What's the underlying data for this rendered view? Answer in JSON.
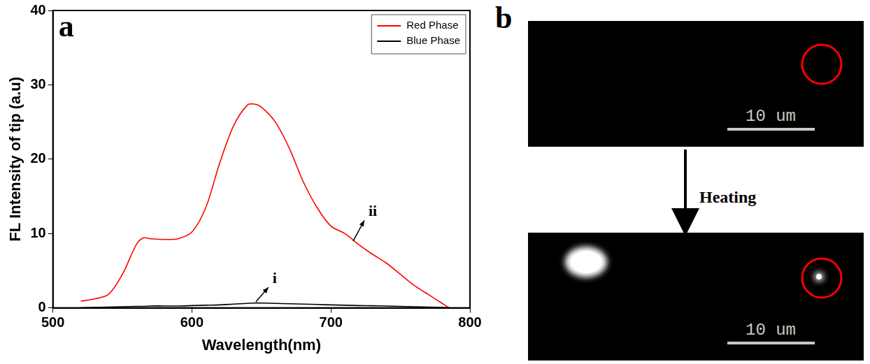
{
  "chart_data": {
    "type": "line",
    "panel_label": "a",
    "x_label": "Wavelength(nm)",
    "y_label": "FL Intensity of tip (a.u)",
    "x": [
      520,
      530,
      540,
      550,
      560,
      565,
      570,
      580,
      590,
      600,
      610,
      620,
      630,
      640,
      645,
      650,
      660,
      670,
      680,
      690,
      700,
      710,
      720,
      730,
      740,
      750,
      760,
      770,
      780,
      785
    ],
    "series": [
      {
        "name": "Red Phase",
        "color": "#ff0000",
        "values": [
          0.9,
          1.2,
          1.8,
          4.5,
          8.5,
          9.4,
          9.3,
          9.2,
          9.3,
          10.2,
          13.5,
          19.5,
          24.5,
          27.3,
          27.4,
          27.0,
          25.0,
          21.5,
          17.0,
          13.5,
          11.0,
          10.0,
          8.5,
          7.2,
          6.0,
          4.5,
          3.0,
          1.8,
          0.6,
          0.0
        ]
      },
      {
        "name": "Blue Phase",
        "color": "#000000",
        "values": [
          0.0,
          0.05,
          0.1,
          0.15,
          0.2,
          0.2,
          0.25,
          0.25,
          0.25,
          0.3,
          0.35,
          0.4,
          0.5,
          0.6,
          0.65,
          0.65,
          0.6,
          0.55,
          0.5,
          0.45,
          0.4,
          0.35,
          0.3,
          0.28,
          0.25,
          0.2,
          0.15,
          0.1,
          0.05,
          0.0
        ]
      }
    ],
    "xlim": [
      500,
      800
    ],
    "xticks": [
      500,
      600,
      700,
      800
    ],
    "ylim": [
      0,
      40
    ],
    "yticks": [
      0,
      10,
      20,
      30,
      40
    ],
    "grid": false,
    "legend": "upper right",
    "annotations": [
      {
        "text": "i",
        "x": 658,
        "y": 3.5,
        "arrow_from": [
          646,
          0.8
        ]
      },
      {
        "text": "ii",
        "x": 727,
        "y": 12.5,
        "arrow_from": [
          716,
          9.0
        ]
      }
    ]
  },
  "image_panel": {
    "panel_label": "b",
    "arrow_label": "Heating",
    "images": [
      {
        "scale_bar": "10 um"
      },
      {
        "scale_bar": "10 um"
      }
    ]
  }
}
